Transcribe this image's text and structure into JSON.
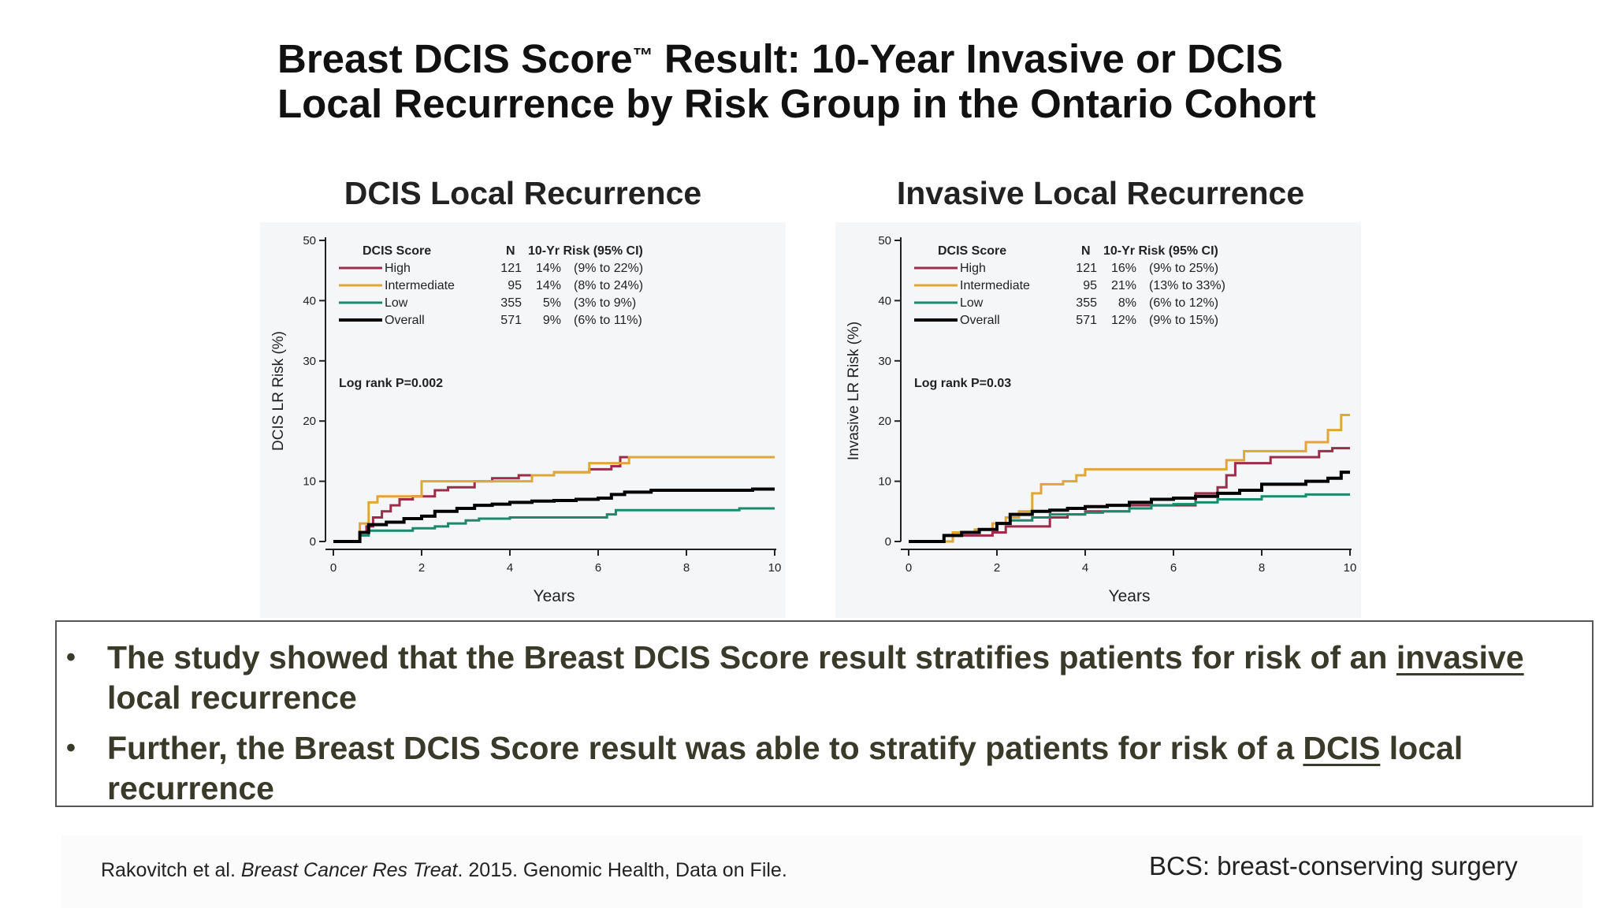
{
  "slide": {
    "title_line1_a": "Breast DCIS Score",
    "title_tm": "™",
    "title_line1_b": " Result: 10-Year Invasive or DCIS",
    "title_line2": "Local Recurrence by Risk Group in the Ontario Cohort"
  },
  "chart_data": [
    {
      "type": "line",
      "title": "DCIS Local Recurrence",
      "xlabel": "Years",
      "ylabel": "DCIS LR Risk (%)",
      "xlim": [
        0,
        10
      ],
      "ylim": [
        0,
        50
      ],
      "xticks": [
        "0",
        "2",
        "4",
        "6",
        "8",
        "10"
      ],
      "yticks": [
        "0",
        "10",
        "20",
        "30",
        "40",
        "50"
      ],
      "grid": false,
      "legend_position": "top-left",
      "legend_header": [
        "DCIS Score",
        "N",
        "10-Yr Risk (95% CI)"
      ],
      "annotation": "Log rank P=0.002",
      "series": [
        {
          "name": "High",
          "color": "#9b2c4a",
          "N": "121",
          "risk": "14%",
          "ci": "(9% to 22%)",
          "x": [
            0,
            0.5,
            0.6,
            0.75,
            0.9,
            1.1,
            1.3,
            1.5,
            1.8,
            2.3,
            2.6,
            3.2,
            3.6,
            4.2,
            5.0,
            5.8,
            6.3,
            6.5,
            7.0,
            10
          ],
          "y": [
            0,
            0,
            1.5,
            2.5,
            4,
            5,
            6,
            7,
            7.5,
            8.5,
            9,
            10,
            10.5,
            11,
            11.5,
            12,
            12.5,
            14,
            14,
            14
          ]
        },
        {
          "name": "Intermediate",
          "color": "#e0a63a",
          "N": "95",
          "risk": "14%",
          "ci": "(8% to 24%)",
          "x": [
            0,
            0.5,
            0.6,
            0.8,
            1.0,
            1.2,
            2.0,
            2.5,
            3.0,
            4.5,
            5.0,
            5.8,
            6.5,
            6.7,
            10
          ],
          "y": [
            0,
            0,
            3,
            6.5,
            7.5,
            7.5,
            10,
            10,
            10,
            11,
            11.5,
            13,
            13,
            14,
            14
          ]
        },
        {
          "name": "Low",
          "color": "#1a8a6a",
          "N": "355",
          "risk": "5%",
          "ci": "(3% to 9%)",
          "x": [
            0,
            0.5,
            0.6,
            0.8,
            1.2,
            1.8,
            2.3,
            2.6,
            3.0,
            3.3,
            4.0,
            5.0,
            6.0,
            6.2,
            6.4,
            7.0,
            9.0,
            9.2,
            10
          ],
          "y": [
            0,
            0,
            1,
            1.8,
            1.8,
            2.2,
            2.5,
            3,
            3.5,
            3.8,
            4,
            4,
            4,
            4.5,
            5.2,
            5.2,
            5.2,
            5.5,
            5.5
          ]
        },
        {
          "name": "Overall",
          "color": "#000000",
          "N": "571",
          "risk": "9%",
          "ci": "(6% to 11%)",
          "x": [
            0,
            0.5,
            0.6,
            0.8,
            1.2,
            1.6,
            2.0,
            2.3,
            2.8,
            3.2,
            3.6,
            4.0,
            4.5,
            5.0,
            5.5,
            6.0,
            6.3,
            6.6,
            7.2,
            8.0,
            9.0,
            9.5,
            10
          ],
          "y": [
            0,
            0,
            1.5,
            2.8,
            3.2,
            3.8,
            4.2,
            5,
            5.5,
            6,
            6.2,
            6.5,
            6.7,
            6.8,
            7,
            7.2,
            7.8,
            8.2,
            8.5,
            8.5,
            8.5,
            8.7,
            8.7
          ]
        }
      ]
    },
    {
      "type": "line",
      "title": "Invasive Local Recurrence",
      "xlabel": "Years",
      "ylabel": "Invasive LR Risk (%)",
      "xlim": [
        0,
        10
      ],
      "ylim": [
        0,
        50
      ],
      "xticks": [
        "0",
        "2",
        "4",
        "6",
        "8",
        "10"
      ],
      "yticks": [
        "0",
        "10",
        "20",
        "30",
        "40",
        "50"
      ],
      "grid": false,
      "legend_position": "top-left",
      "legend_header": [
        "DCIS Score",
        "N",
        "10-Yr Risk (95% CI)"
      ],
      "annotation": "Log rank P=0.03",
      "series": [
        {
          "name": "High",
          "color": "#9b2c4a",
          "N": "121",
          "risk": "16%",
          "ci": "(9% to 25%)",
          "x": [
            0,
            0.5,
            1.0,
            1.5,
            1.9,
            2.2,
            3.0,
            3.2,
            3.6,
            4.0,
            5.0,
            6.5,
            7.0,
            7.2,
            7.4,
            8.2,
            9.0,
            9.3,
            9.6,
            10
          ],
          "y": [
            0,
            0,
            1,
            1,
            1.5,
            2.5,
            2.5,
            4,
            4.5,
            5,
            6,
            8,
            9,
            11,
            13,
            14,
            14,
            15,
            15.5,
            15.5
          ]
        },
        {
          "name": "Intermediate",
          "color": "#e0a63a",
          "N": "95",
          "risk": "21%",
          "ci": "(13% to 33%)",
          "x": [
            0,
            0.5,
            1.0,
            1.5,
            1.9,
            2.2,
            2.5,
            2.8,
            3.0,
            3.5,
            3.8,
            4.0,
            5.0,
            6.0,
            6.5,
            7.2,
            7.6,
            8.5,
            9.0,
            9.5,
            9.8,
            10
          ],
          "y": [
            0,
            0,
            1.5,
            2,
            3,
            4,
            5,
            8,
            9.5,
            10,
            11,
            12,
            12,
            12,
            12,
            13.5,
            15,
            15,
            16.5,
            18.5,
            21,
            21
          ]
        },
        {
          "name": "Low",
          "color": "#1a8a6a",
          "N": "355",
          "risk": "8%",
          "ci": "(6% to 12%)",
          "x": [
            0,
            0.5,
            0.8,
            1.2,
            1.6,
            2.0,
            2.3,
            2.8,
            3.2,
            4.0,
            4.4,
            5.0,
            5.5,
            6.0,
            6.5,
            7.0,
            8.0,
            9.0,
            10
          ],
          "y": [
            0,
            0,
            1,
            1.5,
            2,
            3,
            3.5,
            4,
            4.5,
            4.8,
            5,
            5.5,
            6,
            6.2,
            6.5,
            7,
            7.5,
            7.8,
            7.8
          ]
        },
        {
          "name": "Overall",
          "color": "#000000",
          "N": "571",
          "risk": "12%",
          "ci": "(9% to 15%)",
          "x": [
            0,
            0.5,
            0.8,
            1.2,
            1.6,
            2.0,
            2.3,
            2.8,
            3.2,
            3.6,
            4.0,
            4.5,
            5.0,
            5.5,
            6.0,
            6.5,
            7.0,
            7.5,
            8.0,
            8.5,
            9.0,
            9.5,
            9.8,
            10
          ],
          "y": [
            0,
            0,
            1,
            1.5,
            2,
            3,
            4.5,
            5,
            5.2,
            5.5,
            5.8,
            6,
            6.5,
            7,
            7.2,
            7.5,
            8,
            8.5,
            9.5,
            9.5,
            10,
            10.5,
            11.5,
            11.5
          ]
        }
      ]
    }
  ],
  "bullets": [
    {
      "pre": "The study showed that the Breast DCIS Score result stratifies patients for risk of an ",
      "underline": "invasive",
      "post": " local recurrence"
    },
    {
      "pre": "Further, the Breast DCIS Score result was able to stratify patients for risk of a ",
      "underline": "DCIS",
      "post": " local recurrence"
    }
  ],
  "bullet_symbol": "•",
  "footer": {
    "citation_authors": "Rakovitch et al. ",
    "citation_journal": "Breast Cancer Res Treat",
    "citation_rest": ". 2015. Genomic Health, Data on File.",
    "abbreviation": "BCS: breast-conserving surgery"
  }
}
